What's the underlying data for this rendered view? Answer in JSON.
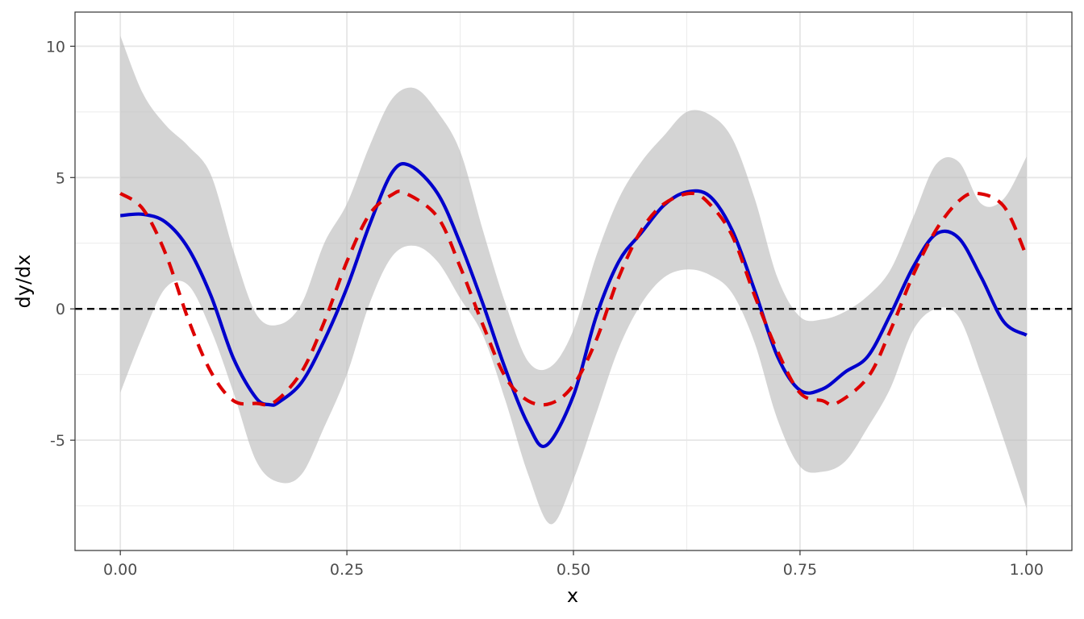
{
  "chart_data": {
    "type": "line",
    "title": "",
    "xlabel": "x",
    "ylabel": "dy/dx",
    "xlim": [
      -0.05,
      1.05
    ],
    "ylim": [
      -9.2,
      11.3
    ],
    "x_ticks": [
      0.0,
      0.25,
      0.5,
      0.75,
      1.0
    ],
    "x_tick_labels": [
      "0.00",
      "0.25",
      "0.50",
      "0.75",
      "1.00"
    ],
    "y_ticks": [
      -5,
      0,
      5,
      10
    ],
    "y_tick_labels": [
      "-5",
      "0",
      "5",
      "10"
    ],
    "grid": true,
    "legend": "none",
    "reference_line": {
      "y": 0,
      "style": "dashed",
      "color": "#000000"
    },
    "band": {
      "x": [
        0.0,
        0.025,
        0.05,
        0.075,
        0.1,
        0.125,
        0.15,
        0.175,
        0.2,
        0.225,
        0.25,
        0.275,
        0.3,
        0.325,
        0.35,
        0.375,
        0.4,
        0.425,
        0.45,
        0.475,
        0.5,
        0.525,
        0.55,
        0.575,
        0.6,
        0.625,
        0.65,
        0.675,
        0.7,
        0.725,
        0.75,
        0.775,
        0.8,
        0.825,
        0.85,
        0.875,
        0.9,
        0.925,
        0.95,
        0.975,
        1.0
      ],
      "upper": [
        10.4,
        8.2,
        7.0,
        6.2,
        5.1,
        2.2,
        -0.2,
        -0.6,
        0.2,
        2.5,
        4.0,
        6.2,
        8.0,
        8.4,
        7.5,
        6.0,
        3.0,
        0.2,
        -2.0,
        -2.2,
        -0.8,
        2.0,
        4.2,
        5.6,
        6.6,
        7.5,
        7.4,
        6.5,
        4.2,
        1.2,
        -0.3,
        -0.4,
        -0.1,
        0.5,
        1.5,
        3.5,
        5.5,
        5.6,
        4.0,
        4.2,
        5.8
      ],
      "lower": [
        -3.2,
        -1.0,
        0.8,
        0.9,
        -0.8,
        -3.2,
        -5.8,
        -6.6,
        -6.3,
        -4.5,
        -2.5,
        0.2,
        2.0,
        2.4,
        1.8,
        0.4,
        -1.0,
        -3.5,
        -6.3,
        -8.2,
        -6.5,
        -4.0,
        -1.5,
        0.2,
        1.2,
        1.5,
        1.3,
        0.6,
        -1.3,
        -4.2,
        -6.0,
        -6.2,
        -5.8,
        -4.5,
        -3.0,
        -0.8,
        0.0,
        -0.3,
        -2.5,
        -5.0,
        -7.6
      ]
    },
    "series": [
      {
        "color": "#0000cc",
        "style": "solid",
        "x": [
          0.0,
          0.025,
          0.05,
          0.075,
          0.1,
          0.125,
          0.15,
          0.165,
          0.175,
          0.2,
          0.225,
          0.25,
          0.275,
          0.3,
          0.32,
          0.35,
          0.375,
          0.4,
          0.425,
          0.45,
          0.47,
          0.5,
          0.525,
          0.55,
          0.575,
          0.6,
          0.625,
          0.65,
          0.675,
          0.7,
          0.725,
          0.75,
          0.775,
          0.8,
          0.825,
          0.85,
          0.875,
          0.9,
          0.925,
          0.95,
          0.975,
          1.0
        ],
        "y": [
          3.55,
          3.6,
          3.3,
          2.3,
          0.5,
          -1.9,
          -3.4,
          -3.65,
          -3.55,
          -2.8,
          -1.2,
          0.8,
          3.2,
          5.2,
          5.45,
          4.4,
          2.5,
          0.2,
          -2.3,
          -4.4,
          -5.2,
          -3.3,
          -0.3,
          1.8,
          2.9,
          3.95,
          4.45,
          4.3,
          3.0,
          0.7,
          -1.8,
          -3.1,
          -3.05,
          -2.4,
          -1.8,
          -0.2,
          1.6,
          2.85,
          2.7,
          1.2,
          -0.5,
          -1.0
        ]
      },
      {
        "color": "#dd0000",
        "style": "dashed",
        "x": [
          0.0,
          0.025,
          0.05,
          0.075,
          0.1,
          0.125,
          0.15,
          0.17,
          0.2,
          0.225,
          0.25,
          0.275,
          0.3,
          0.315,
          0.35,
          0.375,
          0.4,
          0.425,
          0.45,
          0.475,
          0.5,
          0.525,
          0.55,
          0.575,
          0.6,
          0.63,
          0.65,
          0.675,
          0.7,
          0.725,
          0.75,
          0.775,
          0.79,
          0.825,
          0.85,
          0.875,
          0.9,
          0.925,
          0.945,
          0.975,
          1.0
        ],
        "y": [
          4.4,
          3.8,
          2.1,
          -0.4,
          -2.4,
          -3.5,
          -3.6,
          -3.55,
          -2.4,
          -0.5,
          1.8,
          3.6,
          4.35,
          4.4,
          3.5,
          1.6,
          -0.6,
          -2.6,
          -3.5,
          -3.6,
          -2.9,
          -1.2,
          1.2,
          3.0,
          4.0,
          4.4,
          4.0,
          2.8,
          0.5,
          -1.6,
          -3.2,
          -3.5,
          -3.6,
          -2.6,
          -0.8,
          1.3,
          3.0,
          4.1,
          4.4,
          3.9,
          2.0
        ]
      }
    ]
  }
}
